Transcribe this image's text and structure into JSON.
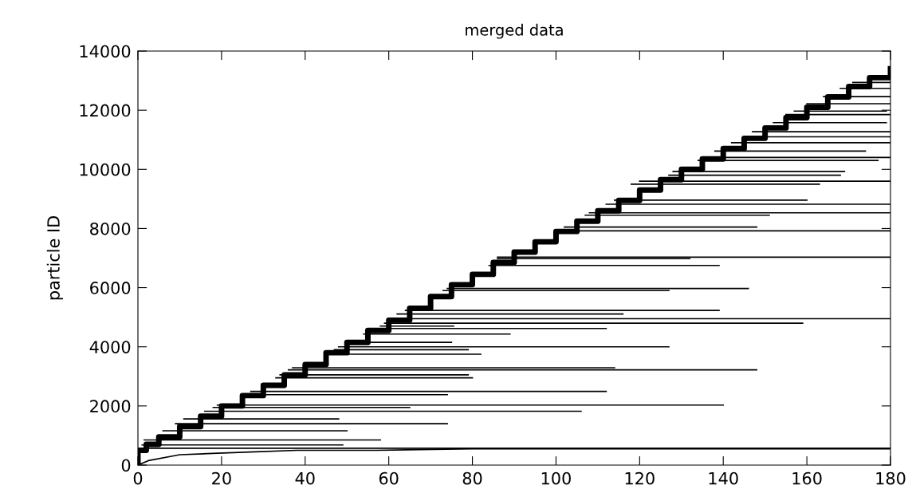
{
  "chart_data": {
    "type": "line",
    "title": "merged data",
    "ylabel": "particle ID",
    "color": "#000000",
    "xlim": [
      0,
      180
    ],
    "xticks": [
      0,
      20,
      40,
      60,
      80,
      100,
      120,
      140,
      160,
      180
    ],
    "ylim": [
      0,
      14000
    ],
    "yticks": [
      0,
      2000,
      4000,
      6000,
      8000,
      10000,
      12000,
      14000
    ],
    "grid": false,
    "marker": "none",
    "line_style": "solid",
    "series": [
      {
        "type": "step",
        "x": [
          0,
          0,
          2,
          5,
          10,
          15,
          20,
          25,
          30,
          35,
          40,
          45,
          50,
          55,
          60,
          65,
          70,
          75,
          80,
          85,
          90,
          95,
          100,
          105,
          110,
          115,
          120,
          125,
          130,
          135,
          140,
          145,
          150,
          155,
          160,
          165,
          170,
          175,
          180
        ],
        "values": [
          0,
          500,
          700,
          950,
          1300,
          1650,
          2000,
          2350,
          2700,
          3050,
          3400,
          3800,
          4150,
          4550,
          4900,
          5300,
          5700,
          6100,
          6450,
          6850,
          7200,
          7550,
          7900,
          8250,
          8600,
          8950,
          9300,
          9650,
          10000,
          10350,
          10700,
          11050,
          11400,
          11750,
          12100,
          12450,
          12800,
          13100,
          13400
        ]
      },
      {
        "x": [
          0,
          2.5,
          10,
          19,
          28,
          38,
          57,
          80,
          180
        ],
        "values": [
          0,
          150,
          350,
          400,
          450,
          500,
          500,
          550,
          550
        ]
      },
      {
        "x": [
          0,
          180
        ],
        "values": [
          570,
          570
        ]
      },
      {
        "x": [
          1,
          49
        ],
        "values": [
          680,
          680
        ]
      },
      {
        "x": [
          1.5,
          58
        ],
        "values": [
          850,
          850
        ]
      },
      {
        "x": [
          6,
          50
        ],
        "values": [
          1160,
          1160
        ]
      },
      {
        "x": [
          9,
          74
        ],
        "values": [
          1400,
          1400
        ]
      },
      {
        "x": [
          11,
          48
        ],
        "values": [
          1560,
          1560
        ]
      },
      {
        "x": [
          16,
          106
        ],
        "values": [
          1820,
          1820
        ]
      },
      {
        "x": [
          18,
          65
        ],
        "values": [
          1950,
          1950
        ]
      },
      {
        "x": [
          19,
          140
        ],
        "values": [
          2030,
          2030
        ]
      },
      {
        "x": [
          25,
          74
        ],
        "values": [
          2380,
          2380
        ]
      },
      {
        "x": [
          27,
          112
        ],
        "values": [
          2490,
          2490
        ]
      },
      {
        "x": [
          33,
          80
        ],
        "values": [
          2950,
          2950
        ]
      },
      {
        "x": [
          34,
          79
        ],
        "values": [
          3050,
          3050
        ]
      },
      {
        "x": [
          36,
          148
        ],
        "values": [
          3220,
          3220
        ]
      },
      {
        "x": [
          37,
          114
        ],
        "values": [
          3290,
          3290
        ]
      },
      {
        "x": [
          45,
          82
        ],
        "values": [
          3750,
          3750
        ]
      },
      {
        "x": [
          47,
          79
        ],
        "values": [
          3900,
          3900
        ]
      },
      {
        "x": [
          48,
          127
        ],
        "values": [
          4000,
          4000
        ]
      },
      {
        "x": [
          50,
          75
        ],
        "values": [
          4150,
          4150
        ]
      },
      {
        "x": [
          54,
          89
        ],
        "values": [
          4430,
          4430
        ]
      },
      {
        "x": [
          57,
          112
        ],
        "values": [
          4620,
          4620
        ]
      },
      {
        "x": [
          58,
          75.5
        ],
        "values": [
          4700,
          4700
        ]
      },
      {
        "x": [
          59,
          159
        ],
        "values": [
          4800,
          4800
        ]
      },
      {
        "x": [
          60,
          180
        ],
        "values": [
          4950,
          4950
        ]
      },
      {
        "x": [
          62,
          116
        ],
        "values": [
          5110,
          5110
        ]
      },
      {
        "x": [
          64,
          139
        ],
        "values": [
          5230,
          5230
        ]
      },
      {
        "x": [
          73,
          127
        ],
        "values": [
          5900,
          5900
        ]
      },
      {
        "x": [
          74,
          146
        ],
        "values": [
          5970,
          5970
        ]
      },
      {
        "x": [
          84,
          139
        ],
        "values": [
          6750,
          6750
        ]
      },
      {
        "x": [
          86,
          132
        ],
        "values": [
          6980,
          6980
        ]
      },
      {
        "x": [
          86,
          180
        ],
        "values": [
          7030,
          7030
        ]
      },
      {
        "x": [
          100,
          180
        ],
        "values": [
          7920,
          7920
        ]
      },
      {
        "x": [
          102,
          148
        ],
        "values": [
          8050,
          8050
        ]
      },
      {
        "x": [
          107,
          151
        ],
        "values": [
          8450,
          8450
        ]
      },
      {
        "x": [
          108,
          180
        ],
        "values": [
          8530,
          8530
        ]
      },
      {
        "x": [
          112,
          180
        ],
        "values": [
          8820,
          8820
        ]
      },
      {
        "x": [
          114,
          160
        ],
        "values": [
          8960,
          8960
        ]
      },
      {
        "x": [
          118,
          163
        ],
        "values": [
          9500,
          9500
        ]
      },
      {
        "x": [
          120,
          180
        ],
        "values": [
          9600,
          9600
        ]
      },
      {
        "x": [
          127,
          168
        ],
        "values": [
          9800,
          9800
        ]
      },
      {
        "x": [
          128,
          169
        ],
        "values": [
          9930,
          9930
        ]
      },
      {
        "x": [
          134,
          177
        ],
        "values": [
          10300,
          10300
        ]
      },
      {
        "x": [
          135,
          180
        ],
        "values": [
          10400,
          10400
        ]
      },
      {
        "x": [
          138,
          174
        ],
        "values": [
          10620,
          10620
        ]
      },
      {
        "x": [
          142,
          180
        ],
        "values": [
          10900,
          10900
        ]
      },
      {
        "x": [
          145,
          180
        ],
        "values": [
          11100,
          11100
        ]
      },
      {
        "x": [
          147,
          180
        ],
        "values": [
          11270,
          11270
        ]
      },
      {
        "x": [
          152,
          179
        ],
        "values": [
          11580,
          11580
        ]
      },
      {
        "x": [
          155,
          180
        ],
        "values": [
          11850,
          11850
        ]
      },
      {
        "x": [
          157,
          179
        ],
        "values": [
          11970,
          11970
        ]
      },
      {
        "x": [
          160,
          180
        ],
        "values": [
          12220,
          12220
        ]
      },
      {
        "x": [
          164,
          180
        ],
        "values": [
          12460,
          12460
        ]
      },
      {
        "x": [
          168,
          180
        ],
        "values": [
          12740,
          12740
        ]
      },
      {
        "x": [
          171,
          180
        ],
        "values": [
          12940,
          12940
        ]
      }
    ]
  }
}
